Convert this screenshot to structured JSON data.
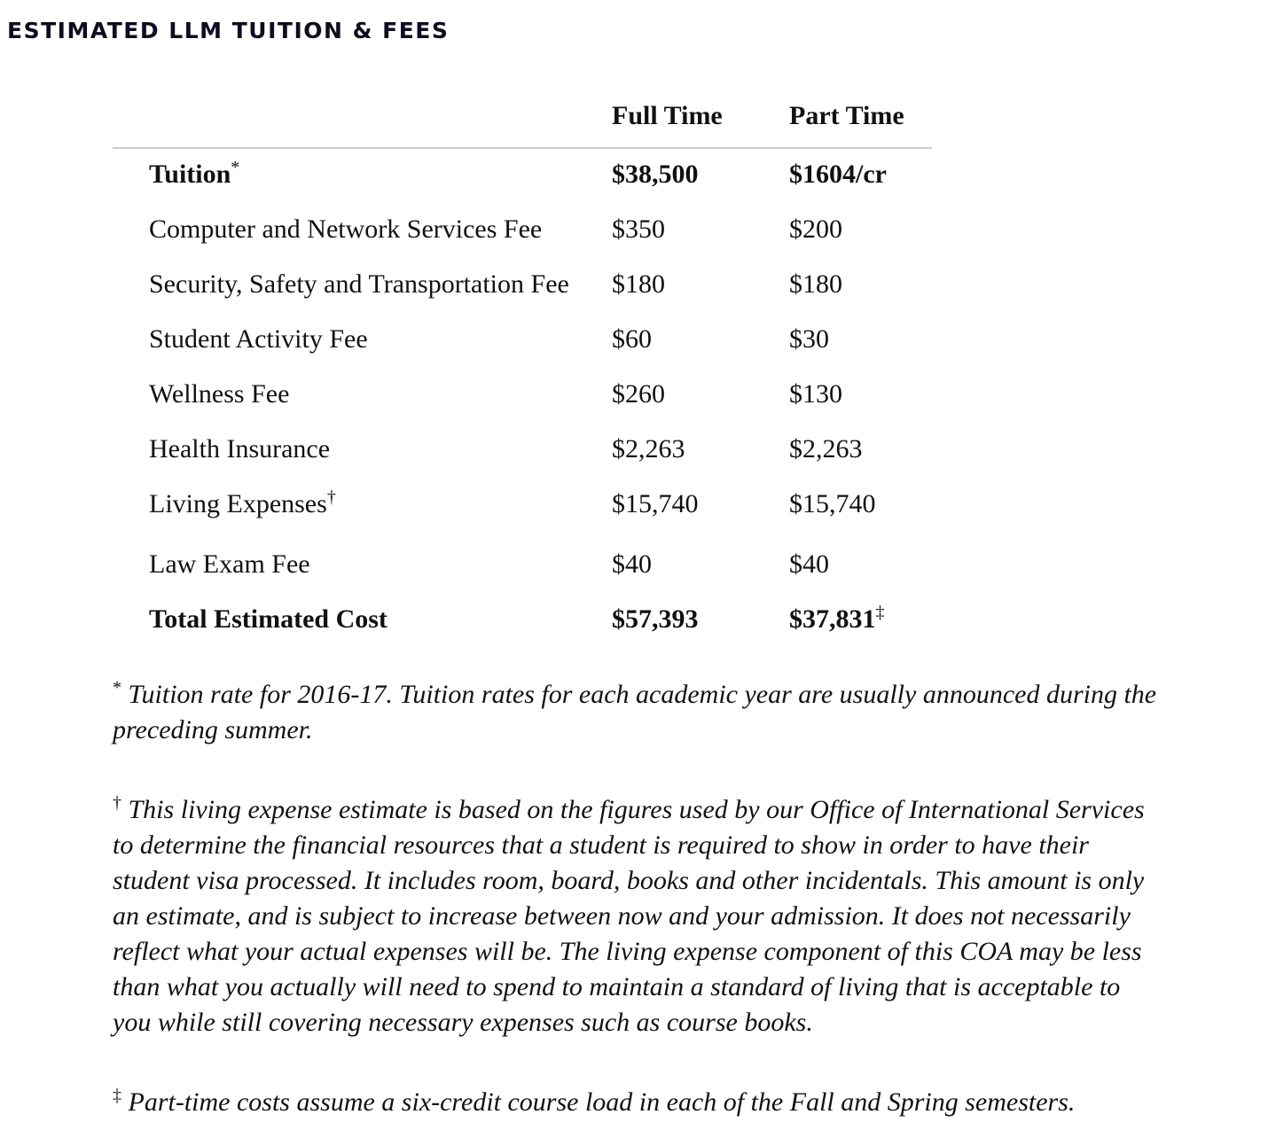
{
  "title": "ESTIMATED LLM TUITION & FEES",
  "columns": [
    "Full Time",
    "Part Time"
  ],
  "rows": [
    {
      "label": "Tuition",
      "mark": "*",
      "full": "$38,500",
      "part": "$1604/cr",
      "bold": true
    },
    {
      "label": "Computer and Network Services Fee",
      "full": "$350",
      "part": "$200"
    },
    {
      "label": "Security, Safety and Transportation Fee",
      "full": "$180",
      "part": "$180"
    },
    {
      "label": "Student Activity Fee",
      "full": "$60",
      "part": "$30"
    },
    {
      "label": "Wellness Fee",
      "full": "$260",
      "part": "$130"
    },
    {
      "label": "Health Insurance",
      "full": "$2,263",
      "part": "$2,263"
    },
    {
      "label": "Living Expenses",
      "mark": "†",
      "full": "$15,740",
      "part": "$15,740"
    },
    {
      "label": "Law Exam Fee",
      "full": "$40",
      "part": "$40"
    },
    {
      "label": "Total Estimated Cost",
      "full": "$57,393",
      "part": "$37,831",
      "part_mark": "‡",
      "bold": true
    }
  ],
  "footnotes": [
    {
      "mark": "*",
      "text": "Tuition rate for 2016-17. Tuition rates for each academic year are usually announced during the preceding summer."
    },
    {
      "mark": "†",
      "text": "This living expense estimate is based on the figures used by our Office of International Services to determine the financial resources that a student is required to show in order to have their student visa processed. It includes room, board, books and other incidentals. This amount is only an estimate, and is subject to increase between now and your admission. It does not necessarily reflect what your actual expenses will be. The living expense component of this COA may be less than what you actually will need to spend to maintain a standard of living that is acceptable to you while still covering necessary expenses such as course books."
    },
    {
      "mark": "‡",
      "text": "Part-time costs assume a six-credit course load in each of the Fall and Spring semesters."
    }
  ]
}
